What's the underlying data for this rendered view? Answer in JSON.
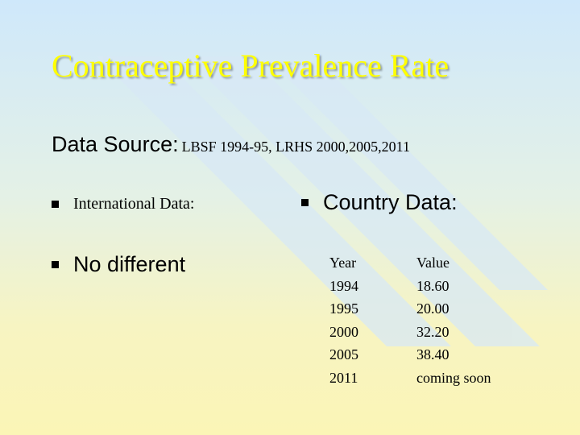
{
  "title": "Contraceptive Prevalence Rate",
  "data_source": {
    "label": "Data Source:",
    "detail": "LBSF 1994-95, LRHS 2000,2005,2011"
  },
  "bullets": {
    "international": "International Data:",
    "no_different": "No different",
    "country": "Country Data:"
  },
  "table": {
    "year_header": "Year",
    "value_header": "Value",
    "years": [
      "1994",
      "1995",
      "2000",
      "2005",
      "2011"
    ],
    "values": [
      "18.60",
      "20.00",
      "32.20",
      "38.40",
      "coming soon"
    ]
  },
  "colors": {
    "title": "#ffff00",
    "background_top": "#cfe8fb",
    "background_bottom": "#fbf5b6"
  }
}
